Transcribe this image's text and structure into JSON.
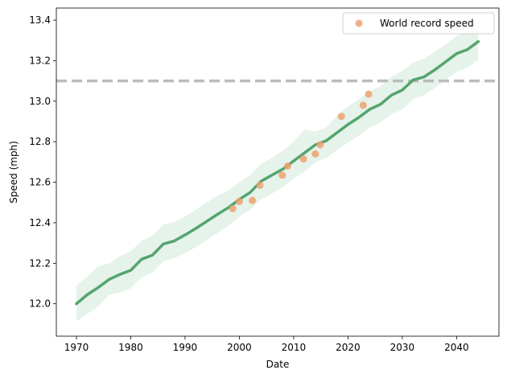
{
  "chart_data": {
    "type": "line",
    "title": "",
    "xlabel": "Date",
    "ylabel": "Speed (mph)",
    "xlim": [
      1966.3,
      2047.8
    ],
    "ylim": [
      11.84,
      13.46
    ],
    "xticks": [
      1970,
      1980,
      1990,
      2000,
      2010,
      2020,
      2030,
      2040
    ],
    "yticks": [
      12.0,
      12.2,
      12.4,
      12.6,
      12.8,
      13.0,
      13.2,
      13.4
    ],
    "xtick_labels": [
      "1970",
      "1980",
      "1990",
      "2000",
      "2010",
      "2020",
      "2030",
      "2040"
    ],
    "ytick_labels": [
      "12.0",
      "12.2",
      "12.4",
      "12.6",
      "12.8",
      "13.0",
      "13.2",
      "13.4"
    ],
    "grid": false,
    "legend_position": "top-right",
    "colors": {
      "trend_line": "#55a46e",
      "band": "#dcefe3",
      "points": "#f0a170",
      "reference_line": "#bbbbbb"
    },
    "reference_line": {
      "y": 13.1,
      "style": "dashed"
    },
    "series": [
      {
        "name": "trend",
        "kind": "line",
        "x": [
          1970,
          1972,
          1974,
          1976,
          1978,
          1980,
          1982,
          1984,
          1986,
          1988,
          1990,
          1992,
          1994,
          1996,
          1998,
          2000,
          2002,
          2004,
          2006,
          2008,
          2010,
          2012,
          2014,
          2016,
          2018,
          2020,
          2022,
          2024,
          2026,
          2028,
          2030,
          2032,
          2034,
          2036,
          2038,
          2040,
          2042,
          2044
        ],
        "y": [
          12.0,
          12.045,
          12.08,
          12.12,
          12.145,
          12.165,
          12.22,
          12.24,
          12.295,
          12.31,
          12.34,
          12.372,
          12.407,
          12.442,
          12.475,
          12.515,
          12.55,
          12.605,
          12.635,
          12.665,
          12.705,
          12.745,
          12.785,
          12.805,
          12.845,
          12.885,
          12.92,
          12.96,
          12.985,
          13.03,
          13.055,
          13.105,
          13.12,
          13.155,
          13.195,
          13.235,
          13.255,
          13.295
        ]
      },
      {
        "name": "band_upper",
        "kind": "band",
        "y": [
          12.09,
          12.135,
          12.185,
          12.2,
          12.235,
          12.26,
          12.31,
          12.335,
          12.39,
          12.405,
          12.43,
          12.465,
          12.5,
          12.535,
          12.56,
          12.6,
          12.635,
          12.69,
          12.72,
          12.755,
          12.8,
          12.86,
          12.85,
          12.87,
          12.93,
          12.975,
          13.01,
          13.05,
          13.075,
          13.12,
          13.15,
          13.19,
          13.21,
          13.245,
          13.28,
          13.32,
          13.345,
          13.385
        ]
      },
      {
        "name": "band_lower",
        "kind": "band",
        "y": [
          11.915,
          11.95,
          11.985,
          12.045,
          12.055,
          12.075,
          12.13,
          12.155,
          12.21,
          12.225,
          12.25,
          12.28,
          12.315,
          12.35,
          12.385,
          12.43,
          12.465,
          12.515,
          12.545,
          12.575,
          12.62,
          12.65,
          12.7,
          12.72,
          12.76,
          12.795,
          12.83,
          12.87,
          12.895,
          12.935,
          12.96,
          13.01,
          13.03,
          13.065,
          13.105,
          13.145,
          13.165,
          13.205
        ]
      },
      {
        "name": "World record speed",
        "kind": "scatter",
        "x": [
          1998.8,
          2000.0,
          2002.4,
          2003.8,
          2007.9,
          2008.9,
          2011.8,
          2014.0,
          2014.9,
          2018.8,
          2022.8,
          2023.8
        ],
        "y": [
          12.47,
          12.505,
          12.51,
          12.585,
          12.635,
          12.68,
          12.715,
          12.74,
          12.785,
          12.925,
          12.98,
          13.035
        ]
      }
    ],
    "legend": [
      "World record speed"
    ]
  }
}
